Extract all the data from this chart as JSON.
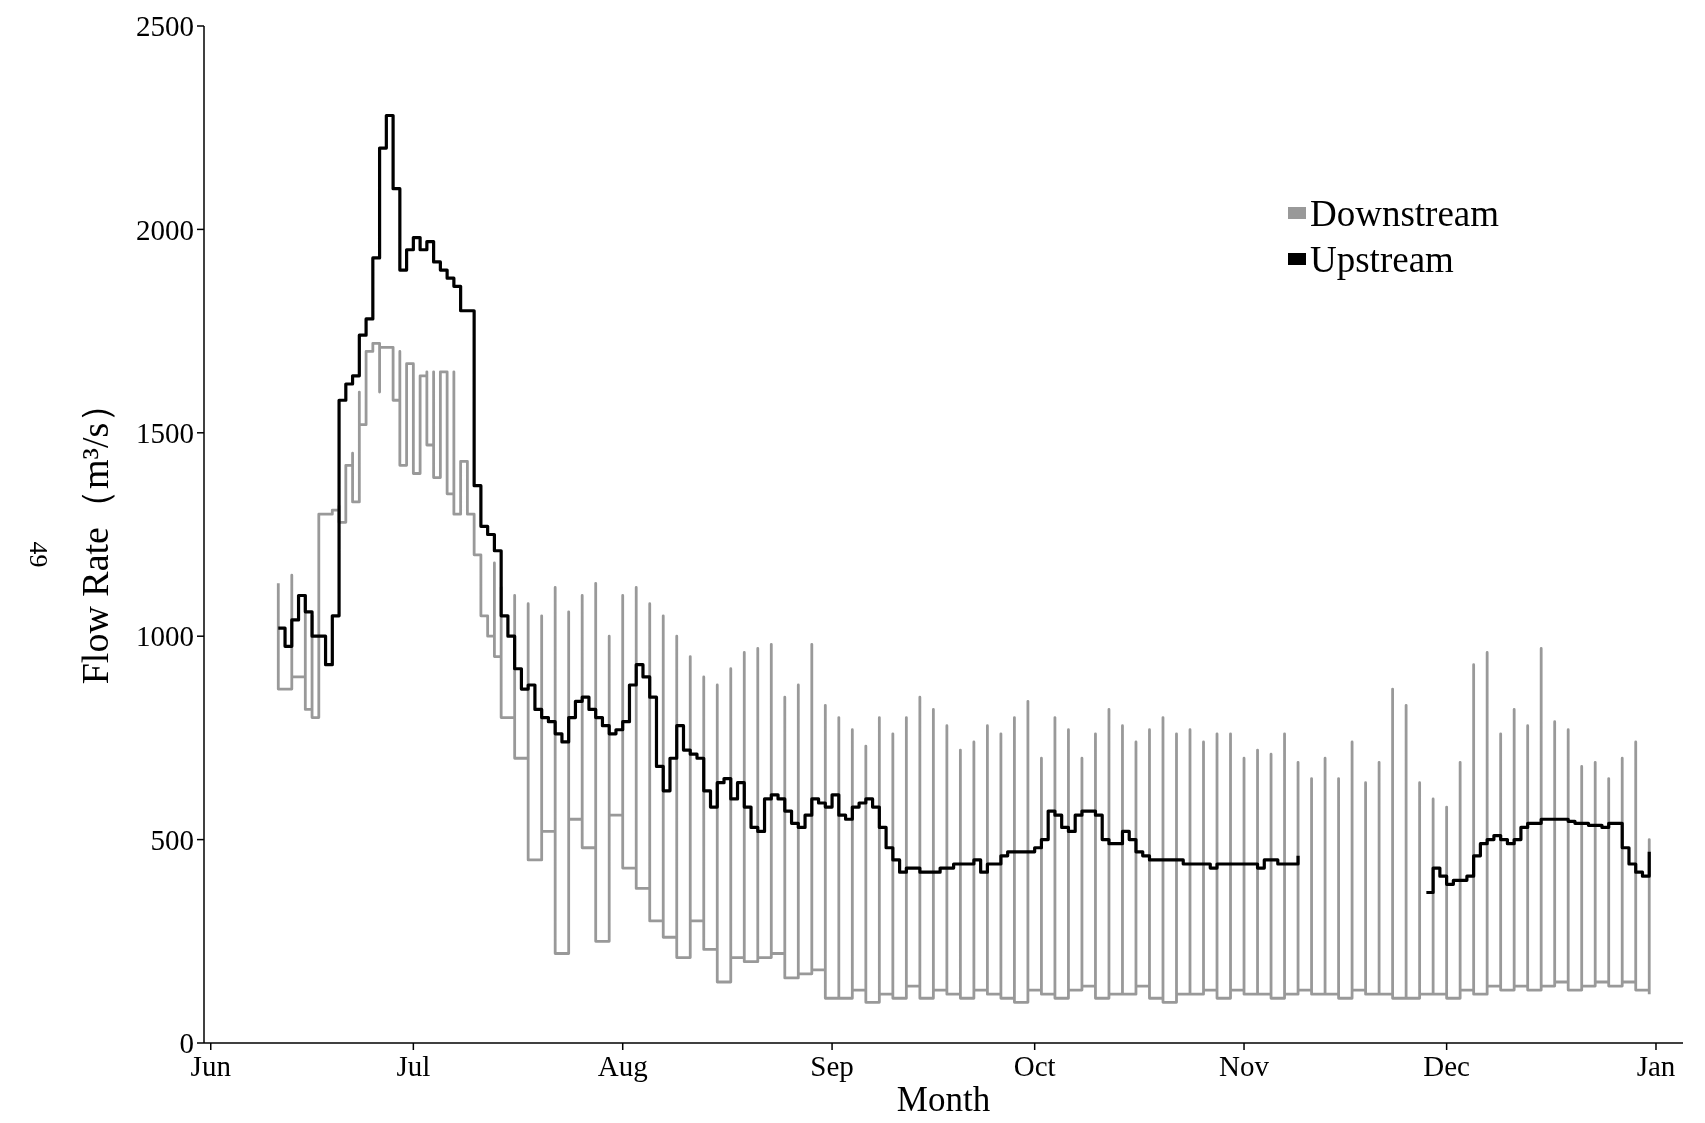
{
  "chart_data": {
    "type": "step",
    "xlabel": "Month",
    "ylabel": "Flow Rate（m³/s）",
    "annotations": [
      "49"
    ],
    "xlim": [
      "2000-05-31",
      "2001-01-05"
    ],
    "ylim": [
      0,
      2500
    ],
    "xticks": [
      {
        "value": "2000-06-01",
        "label": "Jun"
      },
      {
        "value": "2000-07-01",
        "label": "Jul"
      },
      {
        "value": "2000-08-01",
        "label": "Aug"
      },
      {
        "value": "2000-09-01",
        "label": "Sep"
      },
      {
        "value": "2000-10-01",
        "label": "Oct"
      },
      {
        "value": "2000-11-01",
        "label": "Nov"
      },
      {
        "value": "2000-12-01",
        "label": "Dec"
      },
      {
        "value": "2001-01-01",
        "label": "Jan"
      }
    ],
    "yticks": [
      0,
      500,
      1000,
      1500,
      2000,
      2500
    ],
    "legend": "top right",
    "line_style": "solid",
    "series": [
      {
        "name": "Downstream",
        "color": "#999999",
        "x": [
          "2000-06-11",
          "2000-06-11",
          "2000-06-13",
          "2000-06-13",
          "2000-06-15",
          "2000-06-15",
          "2000-06-16",
          "2000-06-16",
          "2000-06-17",
          "2000-06-19",
          "2000-06-20",
          "2000-06-20",
          "2000-06-21",
          "2000-06-22",
          "2000-06-22",
          "2000-06-23",
          "2000-06-23",
          "2000-06-24",
          "2000-06-25",
          "2000-06-26",
          "2000-06-26",
          "2000-06-28",
          "2000-06-28",
          "2000-06-29",
          "2000-06-29",
          "2000-06-30",
          "2000-07-01",
          "2000-07-01",
          "2000-07-02",
          "2000-07-03",
          "2000-07-03",
          "2000-07-04",
          "2000-07-04",
          "2000-07-05",
          "2000-07-06",
          "2000-07-06",
          "2000-07-07",
          "2000-07-07",
          "2000-07-08",
          "2000-07-09",
          "2000-07-09",
          "2000-07-10",
          "2000-07-11",
          "2000-07-11",
          "2000-07-12",
          "2000-07-13",
          "2000-07-13",
          "2000-07-14",
          "2000-07-14",
          "2000-07-16",
          "2000-07-16",
          "2000-07-18",
          "2000-07-18",
          "2000-07-20",
          "2000-07-20",
          "2000-07-22",
          "2000-07-22",
          "2000-07-24",
          "2000-07-24",
          "2000-07-26",
          "2000-07-26",
          "2000-07-28",
          "2000-07-28",
          "2000-07-30",
          "2000-07-30",
          "2000-08-01",
          "2000-08-01",
          "2000-08-03",
          "2000-08-03",
          "2000-08-05",
          "2000-08-05",
          "2000-08-07",
          "2000-08-07",
          "2000-08-09",
          "2000-08-09",
          "2000-08-11",
          "2000-08-11",
          "2000-08-13",
          "2000-08-13",
          "2000-08-15",
          "2000-08-15",
          "2000-08-17",
          "2000-08-17",
          "2000-08-19",
          "2000-08-19",
          "2000-08-21",
          "2000-08-21",
          "2000-08-23",
          "2000-08-23",
          "2000-08-25",
          "2000-08-25",
          "2000-08-27",
          "2000-08-27",
          "2000-08-29",
          "2000-08-29",
          "2000-08-31",
          "2000-08-31",
          "2000-09-02",
          "2000-09-02",
          "2000-09-04",
          "2000-09-04",
          "2000-09-06",
          "2000-09-06",
          "2000-09-08",
          "2000-09-08",
          "2000-09-10",
          "2000-09-10",
          "2000-09-12",
          "2000-09-12",
          "2000-09-14",
          "2000-09-14",
          "2000-09-16",
          "2000-09-16",
          "2000-09-18",
          "2000-09-18",
          "2000-09-20",
          "2000-09-20",
          "2000-09-22",
          "2000-09-22",
          "2000-09-24",
          "2000-09-24",
          "2000-09-26",
          "2000-09-26",
          "2000-09-28",
          "2000-09-28",
          "2000-09-30",
          "2000-09-30",
          "2000-10-02",
          "2000-10-02",
          "2000-10-04",
          "2000-10-04",
          "2000-10-06",
          "2000-10-06",
          "2000-10-08",
          "2000-10-08",
          "2000-10-10",
          "2000-10-10",
          "2000-10-12",
          "2000-10-12",
          "2000-10-14",
          "2000-10-14",
          "2000-10-16",
          "2000-10-16",
          "2000-10-18",
          "2000-10-18",
          "2000-10-20",
          "2000-10-20",
          "2000-10-22",
          "2000-10-22",
          "2000-10-24",
          "2000-10-24",
          "2000-10-26",
          "2000-10-26",
          "2000-10-28",
          "2000-10-28",
          "2000-10-30",
          "2000-10-30",
          "2000-11-01",
          "2000-11-01",
          "2000-11-03",
          "2000-11-03",
          "2000-11-05",
          "2000-11-05",
          "2000-11-07",
          "2000-11-07",
          "2000-11-09",
          "2000-11-09",
          "2000-11-11",
          "2000-11-11",
          "2000-11-13",
          "2000-11-13",
          "2000-11-15",
          "2000-11-15",
          "2000-11-17",
          "2000-11-17",
          "2000-11-19",
          "2000-11-19",
          "2000-11-21",
          "2000-11-21",
          "2000-11-23",
          "2000-11-23",
          "2000-11-25",
          "2000-11-25",
          "2000-11-27",
          "2000-11-27",
          "2000-11-29",
          "2000-11-29",
          "2000-12-01",
          "2000-12-01",
          "2000-12-03",
          "2000-12-03",
          "2000-12-05",
          "2000-12-05",
          "2000-12-07",
          "2000-12-07",
          "2000-12-09",
          "2000-12-09",
          "2000-12-11",
          "2000-12-11",
          "2000-12-13",
          "2000-12-13",
          "2000-12-15",
          "2000-12-15",
          "2000-12-17",
          "2000-12-17",
          "2000-12-19",
          "2000-12-19",
          "2000-12-21",
          "2000-12-21",
          "2000-12-23",
          "2000-12-23",
          "2000-12-25",
          "2000-12-25",
          "2000-12-27",
          "2000-12-27",
          "2000-12-29",
          "2000-12-29",
          "2000-12-31",
          "2000-12-31"
        ],
        "values": [
          1130,
          870,
          1150,
          900,
          1100,
          820,
          1050,
          800,
          1300,
          1310,
          1320,
          1280,
          1420,
          1450,
          1330,
          1600,
          1520,
          1700,
          1720,
          1600,
          1710,
          1710,
          1580,
          1700,
          1420,
          1670,
          1660,
          1400,
          1640,
          1650,
          1470,
          1650,
          1390,
          1650,
          1650,
          1350,
          1650,
          1300,
          1430,
          1350,
          1300,
          1200,
          1190,
          1050,
          1000,
          1180,
          950,
          1120,
          800,
          1100,
          700,
          1080,
          450,
          1050,
          520,
          1120,
          220,
          1060,
          550,
          1100,
          480,
          1130,
          250,
          1000,
          560,
          1100,
          430,
          1120,
          380,
          1080,
          300,
          1050,
          260,
          1000,
          210,
          950,
          300,
          900,
          230,
          880,
          150,
          920,
          210,
          960,
          200,
          970,
          210,
          980,
          220,
          850,
          160,
          880,
          170,
          980,
          180,
          830,
          110,
          800,
          110,
          770,
          130,
          730,
          100,
          800,
          120,
          760,
          110,
          800,
          140,
          850,
          110,
          820,
          130,
          780,
          120,
          720,
          110,
          740,
          130,
          780,
          120,
          760,
          110,
          800,
          100,
          840,
          130,
          700,
          120,
          800,
          110,
          770,
          130,
          700,
          140,
          760,
          110,
          820,
          120,
          780,
          120,
          740,
          140,
          770,
          110,
          800,
          100,
          760,
          120,
          770,
          120,
          740,
          130,
          760,
          110,
          760,
          130,
          700,
          120,
          720,
          120,
          710,
          110,
          760,
          120,
          690,
          130,
          650,
          120,
          700,
          120,
          650,
          110,
          740,
          130,
          640,
          120,
          690,
          120,
          870,
          110,
          830,
          110,
          640,
          120,
          600,
          120,
          580,
          110,
          690,
          130,
          930,
          120,
          960,
          140,
          760,
          130,
          820,
          140,
          780,
          130,
          970,
          140,
          790,
          150,
          770,
          130,
          680,
          140,
          690,
          150,
          650,
          140,
          700,
          150,
          740,
          130,
          500,
          120
        ]
      },
      {
        "name": "Upstream",
        "color": "#000000",
        "x": [
          "2000-06-11",
          "2000-06-12",
          "2000-06-13",
          "2000-06-14",
          "2000-06-15",
          "2000-06-16",
          "2000-06-18",
          "2000-06-19",
          "2000-06-20",
          "2000-06-21",
          "2000-06-22",
          "2000-06-23",
          "2000-06-24",
          "2000-06-25",
          "2000-06-26",
          "2000-06-27",
          "2000-06-28",
          "2000-06-29",
          "2000-06-30",
          "2000-07-01",
          "2000-07-02",
          "2000-07-03",
          "2000-07-04",
          "2000-07-05",
          "2000-07-06",
          "2000-07-07",
          "2000-07-08",
          "2000-07-10",
          "2000-07-11",
          "2000-07-12",
          "2000-07-13",
          "2000-07-14",
          "2000-07-15",
          "2000-07-16",
          "2000-07-17",
          "2000-07-18",
          "2000-07-19",
          "2000-07-20",
          "2000-07-21",
          "2000-07-22",
          "2000-07-23",
          "2000-07-24",
          "2000-07-25",
          "2000-07-26",
          "2000-07-27",
          "2000-07-28",
          "2000-07-29",
          "2000-07-30",
          "2000-07-31",
          "2000-08-01",
          "2000-08-02",
          "2000-08-03",
          "2000-08-04",
          "2000-08-05",
          "2000-08-06",
          "2000-08-07",
          "2000-08-08",
          "2000-08-09",
          "2000-08-10",
          "2000-08-11",
          "2000-08-12",
          "2000-08-13",
          "2000-08-14",
          "2000-08-15",
          "2000-08-16",
          "2000-08-17",
          "2000-08-18",
          "2000-08-19",
          "2000-08-20",
          "2000-08-21",
          "2000-08-22",
          "2000-08-23",
          "2000-08-24",
          "2000-08-25",
          "2000-08-26",
          "2000-08-27",
          "2000-08-28",
          "2000-08-29",
          "2000-08-30",
          "2000-08-31",
          "2000-09-01",
          "2000-09-02",
          "2000-09-03",
          "2000-09-04",
          "2000-09-05",
          "2000-09-06",
          "2000-09-07",
          "2000-09-08",
          "2000-09-09",
          "2000-09-10",
          "2000-09-11",
          "2000-09-12",
          "2000-09-14",
          "2000-09-16",
          "2000-09-17",
          "2000-09-19",
          "2000-09-21",
          "2000-09-22",
          "2000-09-23",
          "2000-09-24",
          "2000-09-26",
          "2000-09-27",
          "2000-09-29",
          "2000-09-30",
          "2000-10-01",
          "2000-10-02",
          "2000-10-03",
          "2000-10-04",
          "2000-10-05",
          "2000-10-06",
          "2000-10-07",
          "2000-10-08",
          "2000-10-09",
          "2000-10-10",
          "2000-10-11",
          "2000-10-12",
          "2000-10-13",
          "2000-10-14",
          "2000-10-15",
          "2000-10-16",
          "2000-10-17",
          "2000-10-18",
          "2000-10-20",
          "2000-10-22",
          "2000-10-23",
          "2000-10-25",
          "2000-10-27",
          "2000-10-28",
          "2000-10-30",
          "2000-11-01",
          "2000-11-03",
          "2000-11-04",
          "2000-11-06",
          "2000-11-08",
          "2000-11-09",
          "2000-11-19",
          "2000-11-28",
          "2000-11-29",
          "2000-11-30",
          "2000-12-01",
          "2000-12-02",
          "2000-12-03",
          "2000-12-04",
          "2000-12-05",
          "2000-12-06",
          "2000-12-07",
          "2000-12-08",
          "2000-12-09",
          "2000-12-10",
          "2000-12-11",
          "2000-12-12",
          "2000-12-13",
          "2000-12-14",
          "2000-12-15",
          "2000-12-17",
          "2000-12-19",
          "2000-12-20",
          "2000-12-22",
          "2000-12-24",
          "2000-12-25",
          "2000-12-26",
          "2000-12-27",
          "2000-12-28",
          "2000-12-29",
          "2000-12-30",
          "2000-12-31"
        ],
        "values": [
          1020,
          975,
          1040,
          1100,
          1060,
          1000,
          930,
          1050,
          1580,
          1620,
          1640,
          1740,
          1780,
          1930,
          2200,
          2280,
          2100,
          1900,
          1950,
          1980,
          1950,
          1970,
          1920,
          1900,
          1880,
          1860,
          1800,
          1370,
          1270,
          1250,
          1210,
          1050,
          1000,
          920,
          870,
          880,
          820,
          800,
          790,
          760,
          740,
          800,
          840,
          850,
          820,
          800,
          780,
          760,
          770,
          790,
          880,
          930,
          900,
          850,
          680,
          620,
          700,
          780,
          720,
          710,
          700,
          620,
          580,
          640,
          650,
          600,
          640,
          580,
          530,
          520,
          600,
          610,
          600,
          570,
          540,
          530,
          560,
          600,
          590,
          580,
          610,
          560,
          550,
          580,
          590,
          600,
          580,
          530,
          480,
          450,
          420,
          430,
          420,
          420,
          430,
          440,
          440,
          450,
          420,
          440,
          460,
          470,
          470,
          470,
          480,
          500,
          570,
          560,
          530,
          520,
          560,
          570,
          570,
          560,
          500,
          490,
          490,
          520,
          500,
          470,
          460,
          450,
          450,
          450,
          440,
          440,
          430,
          440,
          440,
          440,
          430,
          450,
          440,
          440,
          460,
          null,
          370,
          430,
          410,
          390,
          400,
          400,
          410,
          460,
          490,
          500,
          510,
          500,
          490,
          500,
          530,
          540,
          540,
          550,
          550,
          545,
          540,
          535,
          530,
          540,
          540,
          480,
          440,
          420,
          410,
          470
        ]
      }
    ]
  }
}
